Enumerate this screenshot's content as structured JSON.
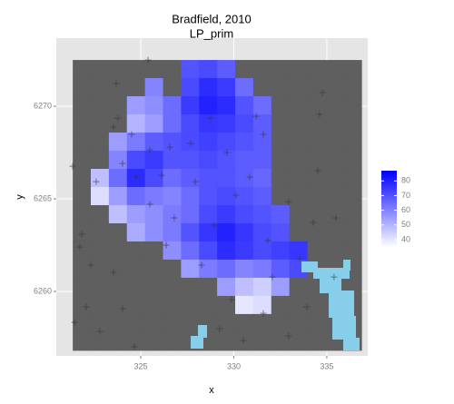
{
  "chart_data": {
    "type": "heatmap",
    "title": "Bradfield, 2010",
    "subtitle": "LP_prim",
    "x_label": "x",
    "y_label": "y",
    "xlim": [
      320.46,
      337.2
    ],
    "ylim": [
      6256.52,
      6273.68
    ],
    "xticks": [
      325,
      330,
      335
    ],
    "yticks": [
      6260,
      6265,
      6270
    ],
    "grid": true,
    "x": [
      321.83,
      322.8,
      323.77,
      324.74,
      325.71,
      326.68,
      327.65,
      328.62,
      329.59,
      330.56,
      331.53,
      332.5,
      333.47,
      334.44,
      335.41,
      336.38
    ],
    "y": [
      6272.01,
      6271.03,
      6270.05,
      6269.07,
      6268.09,
      6267.11,
      6266.13,
      6265.15,
      6264.17,
      6263.19,
      6262.21,
      6261.23,
      6260.25,
      6259.27,
      6258.29,
      6257.31
    ],
    "z": [
      [
        null,
        null,
        null,
        null,
        null,
        null,
        70,
        72,
        68,
        null,
        null,
        null,
        null,
        null,
        null,
        null
      ],
      [
        null,
        null,
        null,
        null,
        60,
        null,
        72,
        78,
        75,
        65,
        null,
        null,
        null,
        null,
        null,
        null
      ],
      [
        null,
        null,
        null,
        55,
        58,
        65,
        75,
        80,
        78,
        70,
        65,
        null,
        null,
        null,
        null,
        null
      ],
      [
        null,
        null,
        null,
        50,
        55,
        65,
        72,
        76,
        75,
        72,
        68,
        null,
        null,
        null,
        null,
        null
      ],
      [
        null,
        null,
        55,
        62,
        68,
        70,
        72,
        74,
        72,
        70,
        68,
        null,
        null,
        null,
        null,
        null
      ],
      [
        null,
        null,
        60,
        72,
        75,
        70,
        70,
        72,
        70,
        68,
        68,
        null,
        null,
        null,
        null,
        null
      ],
      [
        null,
        48,
        65,
        78,
        72,
        65,
        68,
        70,
        70,
        68,
        66,
        null,
        null,
        null,
        null,
        null
      ],
      [
        null,
        42,
        55,
        65,
        62,
        60,
        65,
        70,
        72,
        70,
        68,
        null,
        null,
        null,
        null,
        null
      ],
      [
        null,
        null,
        48,
        55,
        58,
        62,
        65,
        72,
        75,
        72,
        70,
        68,
        null,
        null,
        null,
        null
      ],
      [
        null,
        null,
        null,
        52,
        58,
        62,
        70,
        76,
        80,
        76,
        72,
        70,
        null,
        null,
        null,
        null
      ],
      [
        null,
        null,
        null,
        null,
        null,
        58,
        65,
        72,
        78,
        75,
        72,
        74,
        76,
        null,
        null,
        null
      ],
      [
        null,
        null,
        null,
        null,
        null,
        null,
        55,
        62,
        65,
        60,
        62,
        68,
        72,
        null,
        null,
        null
      ],
      [
        null,
        null,
        null,
        null,
        null,
        null,
        null,
        null,
        55,
        48,
        45,
        55,
        null,
        null,
        null,
        null
      ],
      [
        null,
        null,
        null,
        null,
        null,
        null,
        null,
        null,
        null,
        40,
        42,
        null,
        null,
        null,
        null,
        null
      ],
      [
        null,
        null,
        null,
        null,
        null,
        null,
        null,
        null,
        null,
        null,
        null,
        null,
        null,
        null,
        null,
        null
      ],
      [
        null,
        null,
        null,
        null,
        null,
        null,
        null,
        null,
        null,
        null,
        null,
        null,
        null,
        null,
        null,
        null
      ]
    ],
    "zlim": [
      35,
      87
    ],
    "zticks": [
      40,
      50,
      60,
      70,
      80
    ],
    "low_color": "#FFFFFF",
    "high_color": "#0000FF",
    "na_color": "#5F5F5F",
    "points": {
      "color": "#333333",
      "x": [
        325.39,
        323.68,
        323.78,
        323.54,
        324.51,
        325.49,
        326.56,
        327.68,
        328.76,
        331.2,
        331.59,
        334.76,
        334.61,
        321.34,
        322.61,
        324.02,
        324.76,
        326.12,
        327.93,
        329.63,
        328.95,
        330.12,
        330.85,
        334.51,
        332.95,
        335.49,
        334.27,
        321.83,
        321.73,
        322.32,
        323.54,
        322.07,
        324.02,
        321.44,
        322.8,
        324.66,
        326.37,
        328.27,
        329.88,
        331.59,
        332.07,
        333.54,
        329.24,
        330.51,
        332.95,
        333.93,
        335.39,
        326.8,
        325.49,
        331.83
      ],
      "y": [
        6272.5,
        6271.23,
        6269.36,
        6268.87,
        6268.48,
        6267.65,
        6267.79,
        6267.99,
        6269.36,
        6269.46,
        6268.48,
        6270.74,
        6269.56,
        6266.76,
        6265.93,
        6266.91,
        6266.18,
        6266.27,
        6265.93,
        6267.5,
        6263.58,
        6265.2,
        6266.18,
        6266.52,
        6264.85,
        6263.97,
        6263.72,
        6263.09,
        6262.4,
        6261.42,
        6261.03,
        6259.17,
        6259.07,
        6258.33,
        6257.84,
        6257.01,
        6262.5,
        6261.42,
        6259.56,
        6258.82,
        6260.78,
        6261.76,
        6257.99,
        6257.35,
        6257.6,
        6259.17,
        6260.78,
        6263.97,
        6264.71,
        6262.75
      ]
    }
  }
}
